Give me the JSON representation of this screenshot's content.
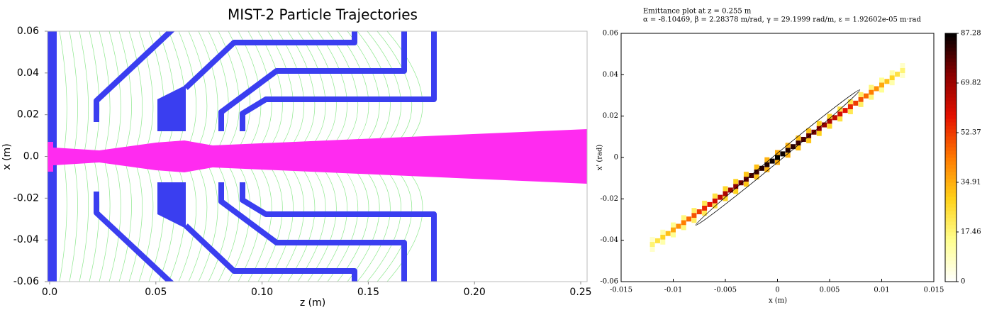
{
  "chart_data": [
    {
      "type": "trajectory",
      "title": "MIST-2 Particle Trajectories",
      "xlabel": "z (m)",
      "ylabel": "x (m)",
      "xlim": [
        -0.001,
        0.253
      ],
      "ylim": [
        -0.06,
        0.06
      ],
      "xticks": [
        {
          "value": 0,
          "label": "0.0"
        },
        0.05,
        {
          "value": 0.1,
          "label": "0.10"
        },
        0.15,
        {
          "value": 0.2,
          "label": "0.20"
        },
        0.25
      ],
      "yticks": [
        0.06,
        0.04,
        0.02,
        {
          "value": 0,
          "label": "0.0"
        },
        -0.02,
        -0.04,
        -0.06
      ]
    },
    {
      "type": "heatmap",
      "title": "Emittance plot at z = 0.255 m",
      "subtitle": "α = -8.10469, β = 2.28378 m/rad, γ = 29.1999 rad/m, ε = 1.92602e-05 m·rad",
      "xlabel": "x (m)",
      "ylabel": "x' (rad)",
      "xlim": [
        -0.015,
        0.015
      ],
      "ylim": [
        -0.06,
        0.06
      ],
      "xticks": [
        -0.015,
        -0.01,
        -0.005,
        0,
        0.005,
        0.01,
        0.015
      ],
      "yticks": [
        0.06,
        0.04,
        0.02,
        0,
        -0.02,
        -0.04,
        -0.06
      ],
      "clim": [
        0,
        87.28
      ],
      "cticks": [
        0,
        17.46,
        34.91,
        52.37,
        69.82,
        87.28
      ],
      "colormap": [
        "#ffffff",
        "#ffff90",
        "#ffd21a",
        "#ff7a00",
        "#e41000",
        "#8a0000",
        "#000000"
      ],
      "x": [
        -0.012,
        -0.0115,
        -0.011,
        -0.0105,
        -0.01,
        -0.0095,
        -0.009,
        -0.0085,
        -0.008,
        -0.0075,
        -0.007,
        -0.0065,
        -0.006,
        -0.0055,
        -0.005,
        -0.0045,
        -0.004,
        -0.0035,
        -0.003,
        -0.0025,
        -0.002,
        -0.0015,
        -0.001,
        -0.0005,
        0,
        0.0005,
        0.001,
        0.0015,
        0.002,
        0.0025,
        0.003,
        0.0035,
        0.004,
        0.0045,
        0.005,
        0.0055,
        0.006,
        0.0065,
        0.007,
        0.0075,
        0.008,
        0.0085,
        0.009,
        0.0095,
        0.01,
        0.0105,
        0.011,
        0.0115,
        0.012,
        -0.012,
        -0.011,
        -0.01,
        -0.009,
        -0.008,
        -0.007,
        -0.006,
        -0.005,
        -0.004,
        -0.003,
        -0.002,
        -0.001,
        0,
        0.001,
        0.002,
        0.003,
        0.004,
        0.005,
        0.006,
        0.007,
        0.008,
        0.009,
        0.01,
        0.011,
        0.012,
        -0.012,
        -0.011,
        -0.01,
        -0.009,
        -0.008,
        -0.007,
        -0.006,
        -0.005,
        -0.004,
        -0.003,
        -0.002,
        -0.001,
        0,
        0.001,
        0.002,
        0.003,
        0.004,
        0.005,
        0.006,
        0.007,
        0.008,
        0.009,
        0.01,
        0.011,
        0.012
      ],
      "y": [
        -0.042,
        -0.04025,
        -0.0385,
        -0.03675,
        -0.035,
        -0.03325,
        -0.0315,
        -0.02975,
        -0.028,
        -0.02625,
        -0.0245,
        -0.02275,
        -0.021,
        -0.01925,
        -0.0175,
        -0.01575,
        -0.014,
        -0.01225,
        -0.0105,
        -0.00875,
        -0.007,
        -0.00525,
        -0.0035,
        -0.00175,
        0,
        0.00175,
        0.0035,
        0.00525,
        0.007,
        0.00875,
        0.0105,
        0.01225,
        0.014,
        0.01575,
        0.0175,
        0.01925,
        0.021,
        0.02275,
        0.0245,
        0.02625,
        0.028,
        0.02975,
        0.0315,
        0.03325,
        0.035,
        0.03675,
        0.0385,
        0.04025,
        0.042,
        -0.0396,
        -0.0361,
        -0.0326,
        -0.0291,
        -0.0256,
        -0.0221,
        -0.0186,
        -0.0151,
        -0.0116,
        -0.0081,
        -0.0046,
        -0.0011,
        0.0024,
        0.0059,
        0.0094,
        0.0129,
        0.0164,
        0.0199,
        0.0234,
        0.0269,
        0.0304,
        0.0339,
        0.0374,
        0.0409,
        0.0444,
        -0.0444,
        -0.0409,
        -0.0374,
        -0.0339,
        -0.0304,
        -0.0269,
        -0.0234,
        -0.0199,
        -0.0164,
        -0.0129,
        -0.0094,
        -0.0059,
        -0.0024,
        0.0011,
        0.0046,
        0.0081,
        0.0116,
        0.0151,
        0.0186,
        0.0221,
        0.0256,
        0.0291,
        0.0326,
        0.0361,
        0.0396
      ],
      "values": [
        18,
        24,
        28,
        32,
        36,
        40,
        43,
        46,
        49,
        52,
        55,
        58,
        61,
        64,
        67,
        70,
        72,
        75,
        77,
        79,
        81,
        83,
        84,
        86,
        87,
        86,
        84,
        83,
        81,
        79,
        77,
        75,
        72,
        70,
        67,
        64,
        61,
        58,
        55,
        52,
        49,
        46,
        43,
        40,
        36,
        32,
        28,
        24,
        18,
        7,
        11,
        14,
        17,
        20,
        22,
        24,
        27,
        29,
        31,
        32,
        34,
        35,
        34,
        32,
        31,
        29,
        27,
        24,
        22,
        20,
        17,
        14,
        11,
        7,
        7,
        11,
        14,
        17,
        20,
        22,
        24,
        27,
        29,
        31,
        32,
        34,
        35,
        34,
        32,
        31,
        29,
        27,
        24,
        22,
        20,
        17,
        14,
        11,
        7
      ]
    }
  ]
}
